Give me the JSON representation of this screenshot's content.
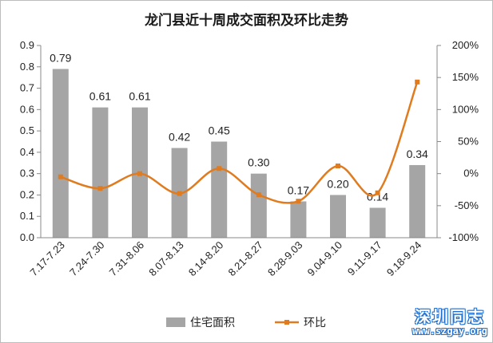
{
  "chart_data": {
    "type": "bar",
    "title": "龙门县近十周成交面积及环比走势",
    "categories": [
      "7.17-7.23",
      "7.24-7.30",
      "7.31-8.06",
      "8.07-8.13",
      "8.14-8.20",
      "8.21-8.27",
      "8.28-9.03",
      "9.04-9.10",
      "9.11-9.17",
      "9.18-9.24"
    ],
    "series": [
      {
        "name": "住宅面积",
        "type": "bar",
        "axis": "left",
        "color": "#a5a5a5",
        "values": [
          0.79,
          0.61,
          0.61,
          0.42,
          0.45,
          0.3,
          0.17,
          0.2,
          0.14,
          0.34
        ],
        "labels": [
          "0.79",
          "0.61",
          "0.61",
          "0.42",
          "0.45",
          "0.30",
          "0.17",
          "0.20",
          "0.14",
          "0.34"
        ]
      },
      {
        "name": "环比",
        "type": "line",
        "axis": "right",
        "color": "#e07b1f",
        "smooth": true,
        "values": [
          -5,
          -23,
          0,
          -31,
          8,
          -33,
          -43,
          12,
          -30,
          143
        ]
      }
    ],
    "y_left": {
      "min": 0,
      "max": 0.9,
      "step": 0.1,
      "ticks": [
        "0.0",
        "0.1",
        "0.2",
        "0.3",
        "0.4",
        "0.5",
        "0.6",
        "0.7",
        "0.8",
        "0.9"
      ]
    },
    "y_right": {
      "min": -100,
      "max": 200,
      "step": 50,
      "ticks": [
        "-100%",
        "-50%",
        "0%",
        "50%",
        "100%",
        "150%",
        "200%"
      ]
    },
    "grid": false,
    "legend": "bottom"
  },
  "watermark": {
    "main": "深圳同志",
    "sub": "www.szgay.org"
  }
}
